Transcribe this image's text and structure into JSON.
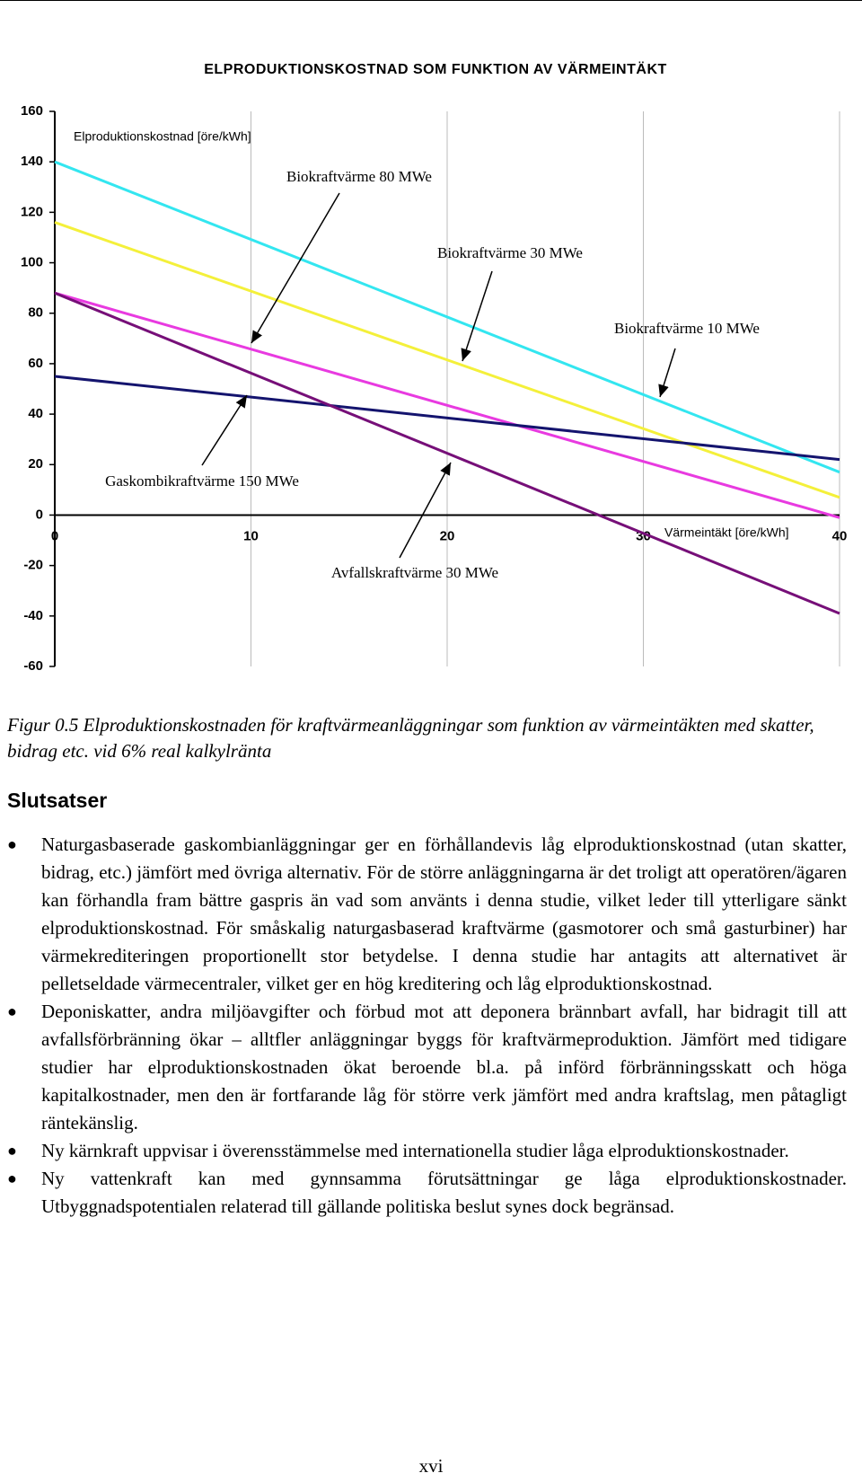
{
  "chart_data": {
    "type": "line",
    "title": "ELPRODUKTIONSKOSTNAD SOM FUNKTION AV VÄRMEINTÄKT",
    "ylabel": "Elproduktionskostnad [öre/kWh]",
    "xlabel": "Värmeintäkt [öre/kWh]",
    "x": [
      0,
      40
    ],
    "series": [
      {
        "name": "Biokraftvärme 10 MWe",
        "color": "#33e6f0",
        "values": [
          140,
          17
        ]
      },
      {
        "name": "Biokraftvärme 30 MWe",
        "color": "#f4f03a",
        "values": [
          116,
          7
        ]
      },
      {
        "name": "Biokraftvärme 80 MWe",
        "color": "#e83ae0",
        "values": [
          88,
          -1
        ]
      },
      {
        "name": "Gaskombikraftvärme 150 MWe",
        "color": "#14146e",
        "values": [
          55,
          22
        ]
      },
      {
        "name": "Avfallskraftvärme 30 MWe",
        "color": "#760f78",
        "values": [
          88,
          -39
        ]
      }
    ],
    "xlim": [
      0,
      40
    ],
    "xticks": [
      0,
      10,
      20,
      30,
      40
    ],
    "ylim": [
      -60,
      160
    ],
    "yticks": [
      -60,
      -40,
      -20,
      0,
      20,
      40,
      60,
      80,
      100,
      120,
      140,
      160
    ],
    "grid": true
  },
  "caption": "Figur 0.5 Elproduktionskostnaden för kraftvärmeanläggningar som funktion av värmeintäkten med skatter, bidrag etc. vid 6% real kalkylränta",
  "heading": "Slutsatser",
  "bullets": [
    "Naturgasbaserade gaskombianläggningar ger en förhållandevis låg elproduktionskostnad (utan skatter, bidrag, etc.) jämfört med övriga alternativ. För de större anläggningarna är det troligt att operatören/ägaren kan förhandla fram bättre gaspris än vad som använts i denna studie, vilket leder till ytterligare sänkt elproduktionskostnad. För småskalig naturgasbaserad kraftvärme (gasmotorer och små gasturbiner) har värmekrediteringen proportionellt stor betydelse. I denna studie har antagits att alternativet är pelletseldade värmecentraler, vilket ger en hög kreditering och låg elproduktionskostnad.",
    "Deponiskatter, andra miljöavgifter och förbud mot att deponera brännbart avfall, har bidragit till att avfallsförbränning ökar – alltfler anläggningar byggs för kraftvärmeproduktion. Jämfört med tidigare studier har elproduktionskostnaden ökat beroende bl.a. på införd förbränningsskatt och höga kapitalkostnader, men den är fortfarande låg för större verk jämfört med andra kraftslag, men påtagligt räntekänslig.",
    "Ny kärnkraft uppvisar i överensstämmelse med internationella studier låga elproduktionskostnader.",
    "Ny vattenkraft kan med gynnsamma förutsättningar ge låga elproduktionskostnader. Utbyggnadspotentialen relaterad till gällande politiska beslut synes dock begränsad."
  ],
  "page_number": "xvi"
}
